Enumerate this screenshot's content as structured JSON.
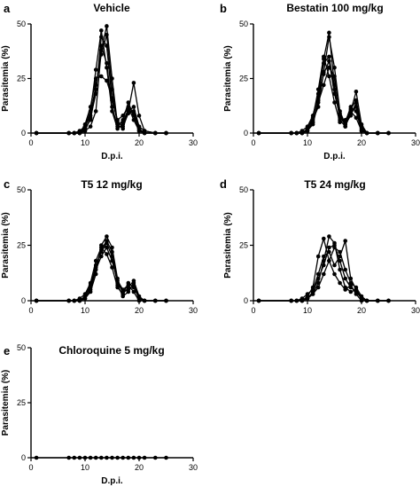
{
  "chart_data": [
    {
      "panel": "a",
      "title": "Vehicle",
      "type": "line",
      "xlabel": "D.p.i.",
      "ylabel": "Parasitemia (%)",
      "xlim": [
        0,
        30
      ],
      "ylim": [
        0,
        50
      ],
      "xticks": [
        0,
        10,
        20,
        30
      ],
      "yticks": [
        0,
        25,
        50
      ],
      "series": [
        {
          "x": [
            1,
            7,
            8,
            9,
            10,
            11,
            12,
            13,
            14,
            15,
            16,
            17,
            18,
            19,
            20,
            21,
            23,
            25
          ],
          "y": [
            0,
            0,
            0,
            0,
            1,
            3,
            10,
            38,
            49,
            25,
            4,
            2,
            10,
            12,
            3,
            1,
            0,
            0
          ]
        },
        {
          "x": [
            1,
            7,
            8,
            9,
            10,
            11,
            12,
            13,
            14,
            15,
            16,
            17,
            18,
            19,
            20,
            21,
            23,
            25
          ],
          "y": [
            0,
            0,
            0,
            0,
            2,
            6,
            20,
            40,
            32,
            12,
            3,
            6,
            14,
            8,
            1,
            0,
            0,
            0
          ]
        },
        {
          "x": [
            1,
            7,
            8,
            9,
            10,
            11,
            12,
            13,
            14,
            15,
            16,
            17,
            18,
            19,
            20,
            21,
            23,
            25
          ],
          "y": [
            0,
            0,
            0,
            1,
            3,
            10,
            29,
            47,
            30,
            10,
            2,
            4,
            10,
            23,
            8,
            1,
            0,
            0
          ]
        },
        {
          "x": [
            1,
            7,
            8,
            9,
            10,
            11,
            12,
            13,
            14,
            15,
            16,
            17,
            18,
            19,
            20,
            21,
            23,
            25
          ],
          "y": [
            0,
            0,
            0,
            0,
            4,
            12,
            25,
            26,
            24,
            16,
            5,
            3,
            9,
            10,
            2,
            0,
            0,
            0
          ]
        },
        {
          "x": [
            1,
            7,
            8,
            9,
            10,
            11,
            12,
            13,
            14,
            15,
            16,
            17,
            18,
            19,
            20,
            21,
            23,
            25
          ],
          "y": [
            0,
            0,
            0,
            0,
            1,
            7,
            18,
            44,
            40,
            15,
            6,
            8,
            12,
            6,
            1,
            0,
            0,
            0
          ]
        },
        {
          "x": [
            1,
            7,
            8,
            9,
            10,
            11,
            12,
            13,
            14,
            15,
            16,
            17,
            18,
            19,
            20,
            21,
            23,
            25
          ],
          "y": [
            0,
            0,
            0,
            0,
            3,
            8,
            22,
            36,
            45,
            20,
            4,
            5,
            11,
            9,
            2,
            0,
            0,
            0
          ]
        }
      ]
    },
    {
      "panel": "b",
      "title": "Bestatin 100 mg/kg",
      "type": "line",
      "xlabel": "D.p.i.",
      "ylabel": "Parasitemia (%)",
      "xlim": [
        0,
        30
      ],
      "ylim": [
        0,
        50
      ],
      "xticks": [
        0,
        10,
        20,
        30
      ],
      "yticks": [
        0,
        25,
        50
      ],
      "series": [
        {
          "x": [
            1,
            7,
            8,
            9,
            10,
            11,
            12,
            13,
            14,
            15,
            16,
            17,
            18,
            19,
            20,
            21,
            23,
            25
          ],
          "y": [
            0,
            0,
            0,
            0,
            1,
            5,
            15,
            34,
            46,
            22,
            6,
            3,
            10,
            19,
            4,
            0,
            0,
            0
          ]
        },
        {
          "x": [
            1,
            7,
            8,
            9,
            10,
            11,
            12,
            13,
            14,
            15,
            16,
            17,
            18,
            19,
            20,
            21,
            23,
            25
          ],
          "y": [
            0,
            0,
            0,
            0,
            2,
            6,
            12,
            28,
            44,
            30,
            10,
            4,
            8,
            14,
            3,
            0,
            0,
            0
          ]
        },
        {
          "x": [
            1,
            7,
            8,
            9,
            10,
            11,
            12,
            13,
            14,
            15,
            16,
            17,
            18,
            19,
            20,
            21,
            23,
            25
          ],
          "y": [
            0,
            0,
            0,
            1,
            3,
            8,
            18,
            32,
            35,
            20,
            7,
            5,
            12,
            10,
            1,
            0,
            0,
            0
          ]
        },
        {
          "x": [
            1,
            7,
            8,
            9,
            10,
            11,
            12,
            13,
            14,
            15,
            16,
            17,
            18,
            19,
            20,
            21,
            23,
            25
          ],
          "y": [
            0,
            0,
            0,
            0,
            1,
            4,
            14,
            22,
            30,
            26,
            9,
            3,
            9,
            12,
            2,
            0,
            0,
            0
          ]
        },
        {
          "x": [
            1,
            7,
            8,
            9,
            10,
            11,
            12,
            13,
            14,
            15,
            16,
            17,
            18,
            19,
            20,
            21,
            23,
            25
          ],
          "y": [
            0,
            0,
            0,
            0,
            2,
            7,
            20,
            35,
            26,
            14,
            5,
            6,
            10,
            7,
            1,
            0,
            0,
            0
          ]
        },
        {
          "x": [
            1,
            7,
            8,
            9,
            10,
            11,
            12,
            13,
            14,
            15,
            16,
            17,
            18,
            19,
            20,
            21,
            23,
            25
          ],
          "y": [
            0,
            0,
            0,
            0,
            1,
            5,
            16,
            27,
            33,
            18,
            8,
            4,
            11,
            15,
            3,
            0,
            0,
            0
          ]
        }
      ]
    },
    {
      "panel": "c",
      "title": "T5 12 mg/kg",
      "type": "line",
      "xlabel": "",
      "ylabel": "Parasitemia (%)",
      "xlim": [
        0,
        30
      ],
      "ylim": [
        0,
        50
      ],
      "xticks": [
        0,
        10,
        20,
        30
      ],
      "yticks": [
        0,
        25,
        50
      ],
      "series": [
        {
          "x": [
            1,
            7,
            8,
            9,
            10,
            11,
            12,
            13,
            14,
            15,
            16,
            17,
            18,
            19,
            20,
            21,
            23,
            25
          ],
          "y": [
            0,
            0,
            0,
            0,
            1,
            4,
            12,
            25,
            29,
            24,
            10,
            3,
            6,
            9,
            2,
            0,
            0,
            0
          ]
        },
        {
          "x": [
            1,
            7,
            8,
            9,
            10,
            11,
            12,
            13,
            14,
            15,
            16,
            17,
            18,
            19,
            20,
            21,
            23,
            25
          ],
          "y": [
            0,
            0,
            0,
            0,
            2,
            6,
            16,
            22,
            26,
            20,
            8,
            4,
            5,
            7,
            1,
            0,
            0,
            0
          ]
        },
        {
          "x": [
            1,
            7,
            8,
            9,
            10,
            11,
            12,
            13,
            14,
            15,
            16,
            17,
            18,
            19,
            20,
            21,
            23,
            25
          ],
          "y": [
            0,
            0,
            0,
            1,
            3,
            8,
            18,
            24,
            21,
            15,
            6,
            3,
            8,
            6,
            1,
            0,
            0,
            0
          ]
        },
        {
          "x": [
            1,
            7,
            8,
            9,
            10,
            11,
            12,
            13,
            14,
            15,
            16,
            17,
            18,
            19,
            20,
            21,
            23,
            25
          ],
          "y": [
            0,
            0,
            0,
            0,
            1,
            5,
            14,
            20,
            24,
            18,
            9,
            5,
            7,
            4,
            0,
            0,
            0,
            0
          ]
        },
        {
          "x": [
            1,
            7,
            8,
            9,
            10,
            11,
            12,
            13,
            14,
            15,
            16,
            17,
            18,
            19,
            20,
            21,
            23,
            25
          ],
          "y": [
            0,
            0,
            0,
            0,
            2,
            7,
            15,
            23,
            27,
            22,
            7,
            2,
            4,
            8,
            1,
            0,
            0,
            0
          ]
        }
      ]
    },
    {
      "panel": "d",
      "title": "T5 24 mg/kg",
      "type": "line",
      "xlabel": "",
      "ylabel": "Parasitemia (%)",
      "xlim": [
        0,
        30
      ],
      "ylim": [
        0,
        50
      ],
      "xticks": [
        0,
        10,
        20,
        30
      ],
      "yticks": [
        0,
        25,
        50
      ],
      "series": [
        {
          "x": [
            1,
            7,
            8,
            9,
            10,
            11,
            12,
            13,
            14,
            15,
            16,
            17,
            18,
            19,
            20,
            21,
            23,
            25
          ],
          "y": [
            0,
            0,
            0,
            0,
            1,
            3,
            8,
            18,
            29,
            26,
            14,
            6,
            4,
            5,
            1,
            0,
            0,
            0
          ]
        },
        {
          "x": [
            1,
            7,
            8,
            9,
            10,
            11,
            12,
            13,
            14,
            15,
            16,
            17,
            18,
            19,
            20,
            21,
            23,
            25
          ],
          "y": [
            0,
            0,
            0,
            0,
            2,
            6,
            20,
            28,
            18,
            12,
            8,
            5,
            7,
            3,
            0,
            0,
            0,
            0
          ]
        },
        {
          "x": [
            1,
            7,
            8,
            9,
            10,
            11,
            12,
            13,
            14,
            15,
            16,
            17,
            18,
            19,
            20,
            21,
            23,
            25
          ],
          "y": [
            0,
            0,
            0,
            0,
            1,
            4,
            10,
            16,
            24,
            25,
            18,
            10,
            6,
            4,
            1,
            0,
            0,
            0
          ]
        },
        {
          "x": [
            1,
            7,
            8,
            9,
            10,
            11,
            12,
            13,
            14,
            15,
            16,
            17,
            18,
            19,
            20,
            21,
            23,
            25
          ],
          "y": [
            0,
            0,
            0,
            1,
            3,
            5,
            12,
            20,
            22,
            16,
            20,
            27,
            10,
            5,
            1,
            0,
            0,
            0
          ]
        },
        {
          "x": [
            1,
            7,
            8,
            9,
            10,
            11,
            12,
            13,
            14,
            15,
            16,
            17,
            18,
            19,
            20,
            21,
            23,
            25
          ],
          "y": [
            0,
            0,
            0,
            0,
            1,
            3,
            6,
            12,
            18,
            24,
            22,
            14,
            8,
            6,
            2,
            0,
            0,
            0
          ]
        }
      ]
    },
    {
      "panel": "e",
      "title": "Chloroquine 5 mg/kg",
      "type": "line",
      "xlabel": "D.p.i.",
      "ylabel": "Parasitemia (%)",
      "xlim": [
        0,
        30
      ],
      "ylim": [
        0,
        50
      ],
      "xticks": [
        0,
        10,
        20,
        30
      ],
      "yticks": [
        0,
        25,
        50
      ],
      "series": [
        {
          "x": [
            1,
            7,
            8,
            9,
            10,
            11,
            12,
            13,
            14,
            15,
            16,
            17,
            18,
            19,
            20,
            21,
            23,
            25
          ],
          "y": [
            0,
            0,
            0,
            0,
            0,
            0,
            0,
            0,
            0,
            0,
            0,
            0,
            0,
            0,
            0,
            0,
            0,
            0
          ]
        }
      ]
    }
  ]
}
